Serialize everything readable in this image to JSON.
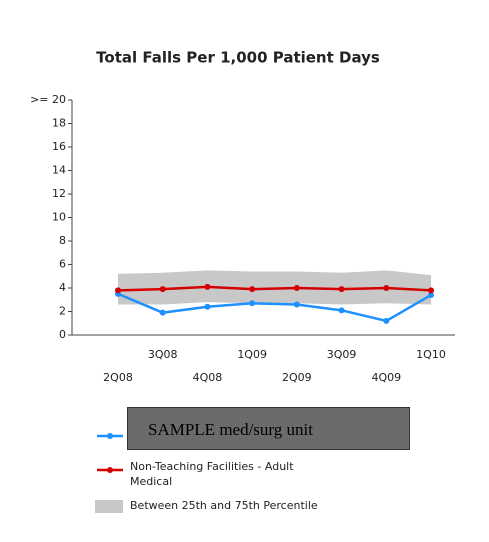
{
  "chart_data": {
    "type": "line",
    "title": "Total Falls Per 1,000 Patient Days",
    "categories": [
      "2Q08",
      "3Q08",
      "4Q08",
      "1Q09",
      "2Q09",
      "3Q09",
      "4Q09",
      "1Q10"
    ],
    "series": [
      {
        "name": "SAMPLE med/surg unit",
        "color": "#1e90ff",
        "values": [
          3.5,
          1.9,
          2.4,
          2.7,
          2.6,
          2.1,
          1.2,
          3.4
        ]
      },
      {
        "name": "Non-Teaching Facilities - Adult Medical",
        "color": "#d40000",
        "values": [
          3.8,
          3.9,
          4.1,
          3.9,
          4.0,
          3.9,
          4.0,
          3.8
        ]
      }
    ],
    "band": {
      "name": "Between 25th and 75th Percentile",
      "color": "#c8c8c8",
      "lower": [
        2.6,
        2.6,
        2.8,
        2.7,
        2.7,
        2.6,
        2.7,
        2.6
      ],
      "upper": [
        5.2,
        5.3,
        5.5,
        5.4,
        5.4,
        5.3,
        5.5,
        5.1
      ]
    },
    "ylim": [
      0,
      20
    ],
    "yticks": [
      0,
      2,
      4,
      6,
      8,
      10,
      12,
      14,
      16,
      18,
      {
        "value": 20,
        "label": ">= 20"
      }
    ],
    "grid": false
  }
}
